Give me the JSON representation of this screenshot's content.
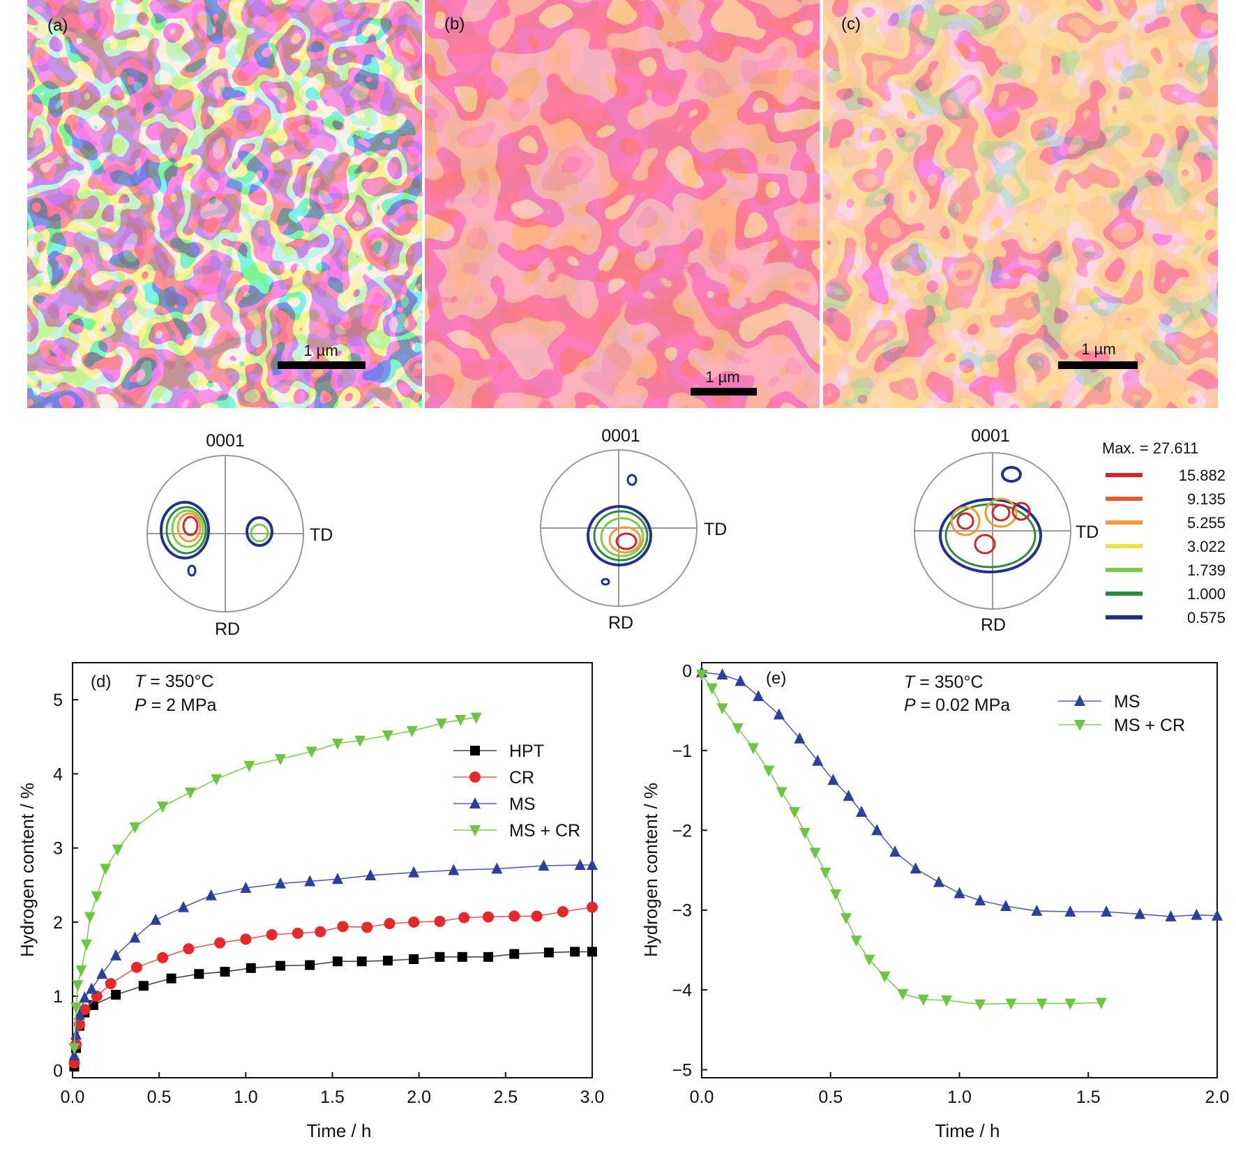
{
  "panels": {
    "a": {
      "tag": "(a)",
      "scalebar": "1 µm"
    },
    "b": {
      "tag": "(b)",
      "scalebar": "1 µm"
    },
    "c": {
      "tag": "(c)",
      "scalebar": "1 µm"
    }
  },
  "pole_figure": {
    "top_label": "0001",
    "right_label": "TD",
    "bottom_label": "RD"
  },
  "contour_legend": {
    "max_label": "Max. = 27.611",
    "levels": [
      {
        "value": "15.882",
        "color": "#d6222a"
      },
      {
        "value": "9.135",
        "color": "#ec5a26"
      },
      {
        "value": "5.255",
        "color": "#f39a32"
      },
      {
        "value": "3.022",
        "color": "#e6e446"
      },
      {
        "value": "1.739",
        "color": "#7ccb46"
      },
      {
        "value": "1.000",
        "color": "#2d8a3a"
      },
      {
        "value": "0.575",
        "color": "#22318c"
      }
    ]
  },
  "chart_data": [
    {
      "type": "line",
      "panel": "(d)",
      "annotation_T_sym": "T",
      "annotation_T_val": "= 350°C",
      "annotation_P_sym": "P",
      "annotation_P_val": "= 2 MPa",
      "xlabel": "Time / h",
      "ylabel": "Hydrogen content / %",
      "xlim": [
        0,
        3.0
      ],
      "ylim": [
        -0.1,
        5.5
      ],
      "xticks": [
        "0.0",
        "0.5",
        "1.0",
        "1.5",
        "2.0",
        "2.5",
        "3.0"
      ],
      "yticks": [
        "0",
        "1",
        "2",
        "3",
        "4",
        "5"
      ],
      "legend_position": "right",
      "series": [
        {
          "name": "HPT",
          "marker": "square",
          "color": "#000000",
          "line_color": "#444444",
          "x": [
            0.01,
            0.02,
            0.04,
            0.07,
            0.12,
            0.25,
            0.41,
            0.57,
            0.73,
            0.88,
            1.03,
            1.2,
            1.37,
            1.53,
            1.67,
            1.82,
            1.97,
            2.12,
            2.25,
            2.4,
            2.55,
            2.75,
            2.9,
            3.0
          ],
          "y": [
            0.05,
            0.3,
            0.6,
            0.78,
            0.88,
            1.02,
            1.14,
            1.24,
            1.3,
            1.33,
            1.38,
            1.41,
            1.42,
            1.47,
            1.47,
            1.48,
            1.5,
            1.53,
            1.53,
            1.53,
            1.57,
            1.59,
            1.6,
            1.6
          ]
        },
        {
          "name": "CR",
          "marker": "circle",
          "color": "#e8272a",
          "line_color": "#e35b5b",
          "x": [
            0.01,
            0.02,
            0.04,
            0.07,
            0.14,
            0.22,
            0.37,
            0.52,
            0.67,
            0.85,
            1.0,
            1.15,
            1.3,
            1.43,
            1.56,
            1.7,
            1.83,
            1.97,
            2.12,
            2.26,
            2.4,
            2.55,
            2.68,
            2.83,
            3.0
          ],
          "y": [
            0.1,
            0.35,
            0.62,
            0.82,
            1.0,
            1.17,
            1.39,
            1.52,
            1.64,
            1.72,
            1.77,
            1.83,
            1.85,
            1.87,
            1.94,
            1.93,
            1.98,
            2.0,
            2.01,
            2.06,
            2.07,
            2.08,
            2.08,
            2.14,
            2.2
          ]
        },
        {
          "name": "MS",
          "marker": "triangle-up",
          "color": "#2d3e9c",
          "line_color": "#5560a8",
          "x": [
            0.01,
            0.02,
            0.04,
            0.07,
            0.11,
            0.17,
            0.25,
            0.36,
            0.48,
            0.64,
            0.8,
            1.0,
            1.2,
            1.37,
            1.53,
            1.72,
            1.97,
            2.2,
            2.45,
            2.72,
            2.93,
            3.0
          ],
          "y": [
            0.2,
            0.48,
            0.75,
            0.98,
            1.1,
            1.3,
            1.55,
            1.79,
            2.03,
            2.2,
            2.36,
            2.46,
            2.52,
            2.55,
            2.58,
            2.63,
            2.67,
            2.7,
            2.72,
            2.76,
            2.77,
            2.77
          ]
        },
        {
          "name": "MS + CR",
          "marker": "triangle-down",
          "color": "#6cc644",
          "line_color": "#85c75a",
          "x": [
            0.01,
            0.02,
            0.03,
            0.05,
            0.08,
            0.1,
            0.14,
            0.19,
            0.26,
            0.36,
            0.52,
            0.68,
            0.83,
            1.02,
            1.2,
            1.38,
            1.53,
            1.66,
            1.82,
            1.96,
            2.13,
            2.24,
            2.33
          ],
          "y": [
            0.3,
            0.85,
            1.15,
            1.35,
            1.7,
            2.07,
            2.35,
            2.72,
            2.98,
            3.28,
            3.56,
            3.75,
            3.93,
            4.11,
            4.2,
            4.3,
            4.41,
            4.45,
            4.52,
            4.58,
            4.68,
            4.73,
            4.76
          ]
        }
      ]
    },
    {
      "type": "line",
      "panel": "(e)",
      "annotation_T_sym": "T",
      "annotation_T_val": "= 350°C",
      "annotation_P_sym": "P",
      "annotation_P_val": "= 0.02 MPa",
      "xlabel": "Time / h",
      "ylabel": "Hydrogen content / %",
      "xlim": [
        0,
        2.0
      ],
      "ylim": [
        -5.1,
        0.1
      ],
      "xticks": [
        "0.0",
        "0.5",
        "1.0",
        "1.5",
        "2.0"
      ],
      "yticks": [
        "0",
        "−1",
        "−2",
        "−3",
        "−4",
        "−5"
      ],
      "legend_position": "top-right",
      "series": [
        {
          "name": "MS",
          "marker": "triangle-up",
          "color": "#2d3e9c",
          "line_color": "#5560a8",
          "x": [
            0.0,
            0.08,
            0.15,
            0.22,
            0.3,
            0.38,
            0.45,
            0.51,
            0.57,
            0.62,
            0.68,
            0.75,
            0.83,
            0.92,
            1.0,
            1.08,
            1.18,
            1.3,
            1.43,
            1.57,
            1.7,
            1.82,
            1.92,
            2.0
          ],
          "y": [
            -0.02,
            -0.05,
            -0.13,
            -0.32,
            -0.55,
            -0.85,
            -1.13,
            -1.37,
            -1.57,
            -1.77,
            -2.0,
            -2.27,
            -2.48,
            -2.65,
            -2.79,
            -2.88,
            -2.95,
            -3.01,
            -3.02,
            -3.02,
            -3.05,
            -3.08,
            -3.06,
            -3.07
          ]
        },
        {
          "name": "MS + CR",
          "marker": "triangle-down",
          "color": "#6cc644",
          "line_color": "#85c75a",
          "x": [
            0.0,
            0.04,
            0.08,
            0.14,
            0.2,
            0.26,
            0.31,
            0.36,
            0.4,
            0.44,
            0.48,
            0.52,
            0.56,
            0.6,
            0.65,
            0.71,
            0.78,
            0.86,
            0.95,
            1.08,
            1.2,
            1.32,
            1.43,
            1.55
          ],
          "y": [
            -0.05,
            -0.22,
            -0.47,
            -0.72,
            -0.97,
            -1.25,
            -1.52,
            -1.77,
            -2.03,
            -2.28,
            -2.53,
            -2.8,
            -3.1,
            -3.38,
            -3.62,
            -3.83,
            -4.05,
            -4.12,
            -4.13,
            -4.18,
            -4.17,
            -4.17,
            -4.17,
            -4.16
          ]
        }
      ]
    }
  ]
}
